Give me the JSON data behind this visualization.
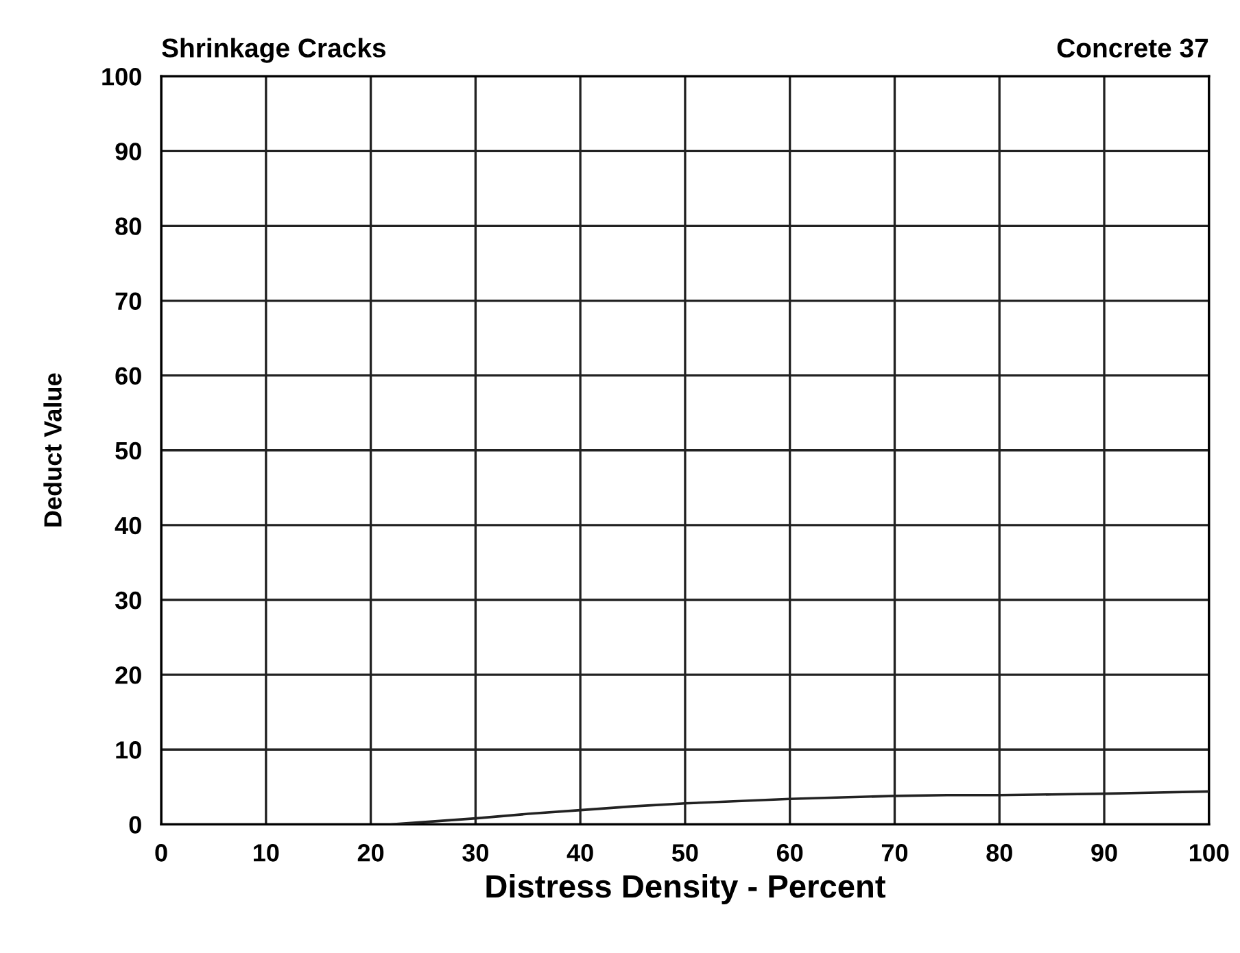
{
  "chart_data": {
    "type": "line",
    "title": "Shrinkage Cracks",
    "subtitle": "Concrete 37",
    "xlabel": "Distress Density - Percent",
    "ylabel": "Deduct Value",
    "x": [
      22,
      25,
      30,
      35,
      40,
      45,
      50,
      55,
      60,
      65,
      70,
      75,
      80,
      85,
      90,
      95,
      100
    ],
    "series": [
      {
        "color": "#222222",
        "values": [
          0,
          0.3,
          0.8,
          1.4,
          1.9,
          2.4,
          2.8,
          3.1,
          3.4,
          3.6,
          3.8,
          3.9,
          3.9,
          4.0,
          4.1,
          4.25,
          4.4
        ]
      }
    ],
    "xlim": [
      0,
      100
    ],
    "ylim": [
      0,
      100
    ],
    "xticks": [
      0,
      10,
      20,
      30,
      40,
      50,
      60,
      70,
      80,
      90,
      100
    ],
    "yticks": [
      0,
      10,
      20,
      30,
      40,
      50,
      60,
      70,
      80,
      90,
      100
    ],
    "grid": true,
    "marker": "none",
    "line_style": "solid"
  }
}
